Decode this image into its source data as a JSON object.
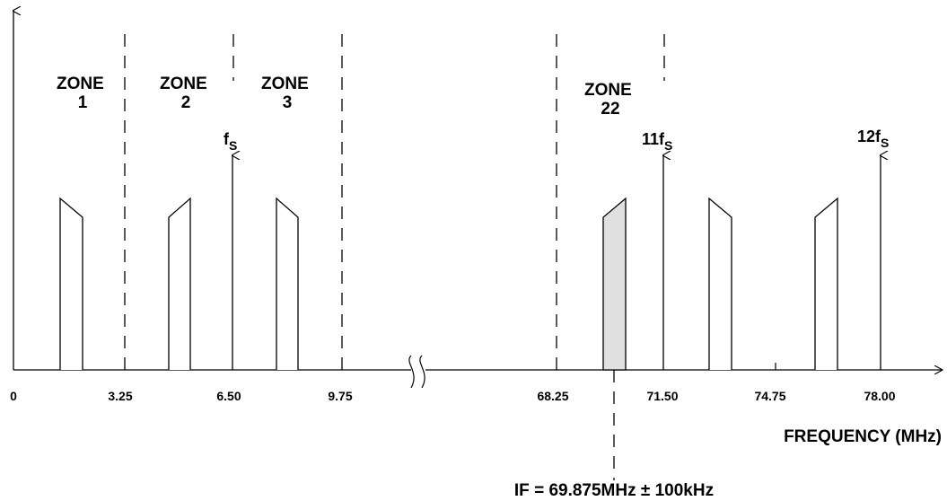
{
  "zones": [
    {
      "id": "1",
      "line1": "ZONE",
      "line2": "1"
    },
    {
      "id": "2",
      "line1": "ZONE",
      "line2": "2"
    },
    {
      "id": "3",
      "line1": "ZONE",
      "line2": "3"
    },
    {
      "id": "22",
      "line1": "ZONE",
      "line2": "22"
    }
  ],
  "sampling_markers": [
    {
      "prefix": "",
      "main": "f",
      "sub": "S"
    },
    {
      "prefix": "11",
      "main": "f",
      "sub": "S"
    },
    {
      "prefix": "12",
      "main": "f",
      "sub": "S"
    }
  ],
  "axis": {
    "tick_labels": [
      "0",
      "3.25",
      "6.50",
      "9.75",
      "68.25",
      "71.50",
      "74.75",
      "78.00"
    ],
    "title": "FREQUENCY (MHz)"
  },
  "if_label": "IF = 69.875MHz ± 100kHz",
  "colors": {
    "line": "#000000",
    "shaded_band": "#e0e0e0"
  }
}
